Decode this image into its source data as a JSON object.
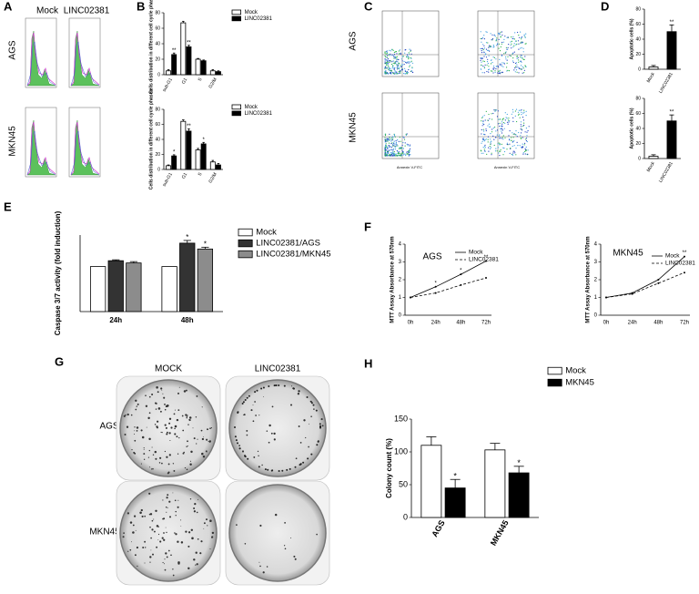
{
  "figure": {
    "panel_labels": [
      "A",
      "B",
      "C",
      "D",
      "E",
      "F",
      "G",
      "H"
    ],
    "a_columns": [
      "Mock",
      "LINC02381"
    ],
    "a_rows": [
      "AGS",
      "MKN45"
    ],
    "c_rows": [
      "AGS",
      "MKN45"
    ],
    "c_x_label": "Annexin V-FITC",
    "g_columns": [
      "MOCK",
      "LINC02381"
    ],
    "g_rows": [
      "AGS",
      "MKN45"
    ]
  },
  "chart_data": [
    {
      "type": "bar",
      "y_label": "Cells distribution in different cell cycle phases",
      "categories": [
        "sub-G1",
        "G1",
        "S",
        "G2/M"
      ],
      "ylim": [
        0,
        80
      ],
      "yticks": [
        0,
        20,
        40,
        60,
        80
      ],
      "series": [
        {
          "name": "Mock",
          "color": "#ffffff",
          "values": [
            5,
            67,
            20,
            5
          ],
          "errors": [
            1.5,
            2,
            1,
            1.5
          ]
        },
        {
          "name": "LINC02381",
          "color": "#000000",
          "values": [
            26,
            36,
            18,
            4
          ],
          "errors": [
            2,
            2,
            1,
            1
          ],
          "annotations": [
            "**",
            "**",
            null,
            null
          ]
        }
      ]
    },
    {
      "type": "bar",
      "y_label": "Cells distribution in different cell cycle phases",
      "categories": [
        "sub-G1",
        "G1",
        "S",
        "G2/M"
      ],
      "ylim": [
        0,
        80
      ],
      "yticks": [
        0,
        20,
        40,
        60,
        80
      ],
      "series": [
        {
          "name": "Mock",
          "color": "#ffffff",
          "values": [
            5,
            64,
            26,
            10
          ],
          "errors": [
            1,
            2,
            2,
            2
          ]
        },
        {
          "name": "LINC02381",
          "color": "#000000",
          "values": [
            18,
            51,
            34,
            6
          ],
          "errors": [
            1.5,
            3,
            2,
            2
          ],
          "annotations": [
            "*",
            "**",
            "*",
            null
          ]
        }
      ]
    },
    {
      "type": "bar",
      "y_label": "Apoptotic cells (%)",
      "categories": [
        "Mock",
        "LINC02381"
      ],
      "ylim": [
        0,
        80
      ],
      "yticks": [
        0,
        20,
        40,
        60,
        80
      ],
      "values": [
        3,
        50
      ],
      "errors": [
        2,
        9
      ],
      "colors": [
        "#ffffff",
        "#000000"
      ],
      "annotations": [
        null,
        "**"
      ]
    },
    {
      "type": "bar",
      "y_label": "Apoptotic cells (%)",
      "categories": [
        "Mock",
        "LINC02381"
      ],
      "ylim": [
        0,
        80
      ],
      "yticks": [
        0,
        20,
        40,
        60,
        80
      ],
      "values": [
        3,
        50
      ],
      "errors": [
        2,
        8
      ],
      "colors": [
        "#ffffff",
        "#000000"
      ],
      "annotations": [
        null,
        "**"
      ]
    },
    {
      "type": "bar",
      "y_label": "Caspase 3/7 activity (fold induction)",
      "categories": [
        "24h",
        "48h"
      ],
      "ylim": [
        0,
        1.7
      ],
      "series": [
        {
          "name": "Mock",
          "color": "#ffffff",
          "values": [
            1,
            1
          ]
        },
        {
          "name": "LINC02381/AGS",
          "color": "#333333",
          "values": [
            1.13,
            1.52
          ],
          "errors": [
            0.02,
            0.06
          ],
          "annotations": [
            null,
            "*"
          ]
        },
        {
          "name": "LINC02381/MKN45",
          "color": "#8c8c8c",
          "values": [
            1.08,
            1.39
          ],
          "errors": [
            0.03,
            0.04
          ],
          "annotations": [
            null,
            "*"
          ]
        }
      ]
    },
    {
      "type": "line",
      "title": "AGS",
      "y_label": "MTT Assay Absorbance at 570nm",
      "categories": [
        "0h",
        "24h",
        "48h",
        "72h"
      ],
      "ylim": [
        0,
        4
      ],
      "yticks": [
        0,
        1,
        2,
        3,
        4
      ],
      "annotations": [
        null,
        "*",
        "*",
        "**"
      ],
      "series": [
        {
          "name": "Mock",
          "color": "#000000",
          "line_style": "solid",
          "values": [
            1,
            1.6,
            2.3,
            3.05
          ]
        },
        {
          "name": "LINC02381",
          "color": "#000000",
          "line_style": "dashed",
          "values": [
            1,
            1.25,
            1.7,
            2.1
          ]
        }
      ]
    },
    {
      "type": "line",
      "title": "MKN45",
      "y_label": "MTT Assay Absorbance at 570nm",
      "categories": [
        "0h",
        "24h",
        "48h",
        "72h"
      ],
      "ylim": [
        0,
        4
      ],
      "yticks": [
        0,
        1,
        2,
        3,
        4
      ],
      "annotations": [
        null,
        null,
        null,
        "**"
      ],
      "series": [
        {
          "name": "Mock",
          "color": "#000000",
          "line_style": "solid",
          "values": [
            1,
            1.25,
            2.0,
            3.3
          ]
        },
        {
          "name": "LINC02381",
          "color": "#000000",
          "line_style": "dashed",
          "values": [
            1,
            1.2,
            1.8,
            2.4
          ]
        }
      ]
    },
    {
      "type": "bar",
      "y_label": "Colony count (%)",
      "categories": [
        "AGS",
        "MKN45"
      ],
      "ylim": [
        0,
        150
      ],
      "yticks": [
        0,
        50,
        100,
        150
      ],
      "series": [
        {
          "name": "Mock",
          "color": "#ffffff",
          "values": [
            110,
            103
          ],
          "errors": [
            13,
            10
          ]
        },
        {
          "name": "MKN45",
          "color": "#000000",
          "values": [
            45,
            68
          ],
          "errors": [
            13,
            10
          ],
          "annotations": [
            "*",
            "*"
          ]
        }
      ]
    }
  ]
}
